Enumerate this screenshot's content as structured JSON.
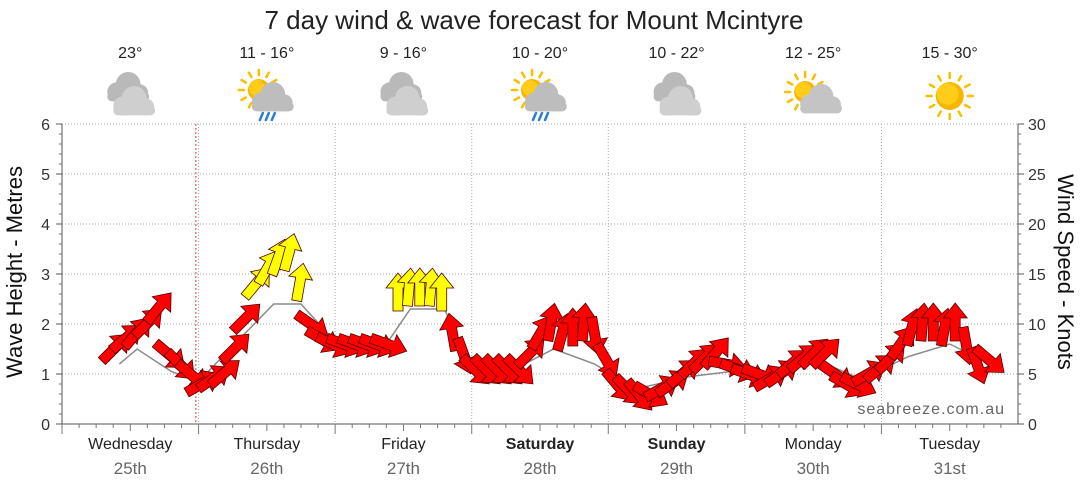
{
  "title": "7 day wind & wave forecast for Mount Mcintyre",
  "watermark": "seabreeze.com.au",
  "colors": {
    "wind_strong": "#ffff00",
    "wind_normal": "#ff0000",
    "arrow_stroke": "#550000",
    "grid": "#999999"
  },
  "days": [
    {
      "name": "Wednesday",
      "date": "25th",
      "bold": false,
      "temp": "23°",
      "icon": "cloudy-icon"
    },
    {
      "name": "Thursday",
      "date": "26th",
      "bold": false,
      "temp": "11 - 16°",
      "icon": "sun-cloud-rain-icon"
    },
    {
      "name": "Friday",
      "date": "27th",
      "bold": false,
      "temp": "9 - 16°",
      "icon": "cloudy-icon"
    },
    {
      "name": "Saturday",
      "date": "28th",
      "bold": true,
      "temp": "10 - 20°",
      "icon": "sun-cloud-rain-icon"
    },
    {
      "name": "Sunday",
      "date": "29th",
      "bold": true,
      "temp": "10 - 22°",
      "icon": "cloudy-icon"
    },
    {
      "name": "Monday",
      "date": "30th",
      "bold": false,
      "temp": "12 - 25°",
      "icon": "sun-cloud-icon"
    },
    {
      "name": "Tuesday",
      "date": "31st",
      "bold": false,
      "temp": "15 - 30°",
      "icon": "sun-icon"
    }
  ],
  "chart_data": {
    "type": "line",
    "title": "7 day wind & wave forecast for Mount Mcintyre",
    "ylabel_left": "Wave Height - Metres",
    "ylabel_right": "Wind Speed - Knots",
    "ylim_left": [
      0,
      6
    ],
    "ylim_right": [
      0,
      30
    ],
    "yticks_left": [
      0,
      1,
      2,
      3,
      4,
      5,
      6
    ],
    "yticks_right": [
      0,
      5,
      10,
      15,
      20,
      25,
      30
    ],
    "x_unit": "days from start of Wednesday 25th",
    "current_time_marker_day": 0.98,
    "grid": true,
    "series": [
      {
        "name": "Wind Speed - Knots",
        "marker": "arrow",
        "points": [
          {
            "x": 0.38,
            "speed": 7.5,
            "dir": 45
          },
          {
            "x": 0.46,
            "speed": 8.5,
            "dir": 50
          },
          {
            "x": 0.54,
            "speed": 9,
            "dir": 40
          },
          {
            "x": 0.62,
            "speed": 10,
            "dir": 45
          },
          {
            "x": 0.7,
            "speed": 11.5,
            "dir": 40
          },
          {
            "x": 0.78,
            "speed": 7,
            "dir": 130
          },
          {
            "x": 0.86,
            "speed": 6,
            "dir": 135
          },
          {
            "x": 0.94,
            "speed": 5,
            "dir": 130
          },
          {
            "x": 1.02,
            "speed": 4,
            "dir": 60
          },
          {
            "x": 1.1,
            "speed": 4.5,
            "dir": 55
          },
          {
            "x": 1.18,
            "speed": 5,
            "dir": 50
          },
          {
            "x": 1.26,
            "speed": 7.5,
            "dir": 45
          },
          {
            "x": 1.34,
            "speed": 10.5,
            "dir": 45
          },
          {
            "x": 1.42,
            "speed": 14,
            "dir": 40
          },
          {
            "x": 1.5,
            "speed": 15.5,
            "dir": 30
          },
          {
            "x": 1.58,
            "speed": 16.5,
            "dir": 20
          },
          {
            "x": 1.66,
            "speed": 17,
            "dir": 15
          },
          {
            "x": 1.74,
            "speed": 14,
            "dir": 10
          },
          {
            "x": 1.82,
            "speed": 10,
            "dir": 125
          },
          {
            "x": 1.9,
            "speed": 8.5,
            "dir": 120
          },
          {
            "x": 1.98,
            "speed": 8,
            "dir": 115
          },
          {
            "x": 2.06,
            "speed": 8,
            "dir": 110
          },
          {
            "x": 2.14,
            "speed": 8,
            "dir": 110
          },
          {
            "x": 2.22,
            "speed": 8,
            "dir": 110
          },
          {
            "x": 2.3,
            "speed": 8,
            "dir": 110
          },
          {
            "x": 2.38,
            "speed": 8,
            "dir": 110
          },
          {
            "x": 2.46,
            "speed": 13,
            "dir": 0
          },
          {
            "x": 2.54,
            "speed": 13.5,
            "dir": 5
          },
          {
            "x": 2.62,
            "speed": 13.5,
            "dir": 0
          },
          {
            "x": 2.7,
            "speed": 13.5,
            "dir": 5
          },
          {
            "x": 2.78,
            "speed": 13,
            "dir": 0
          },
          {
            "x": 2.86,
            "speed": 9,
            "dir": 350
          },
          {
            "x": 2.94,
            "speed": 7,
            "dir": 160
          },
          {
            "x": 3.02,
            "speed": 5.5,
            "dir": 135
          },
          {
            "x": 3.1,
            "speed": 5.5,
            "dir": 135
          },
          {
            "x": 3.18,
            "speed": 5.5,
            "dir": 135
          },
          {
            "x": 3.26,
            "speed": 5.5,
            "dir": 135
          },
          {
            "x": 3.34,
            "speed": 5.5,
            "dir": 135
          },
          {
            "x": 3.42,
            "speed": 7,
            "dir": 45
          },
          {
            "x": 3.5,
            "speed": 9,
            "dir": 30
          },
          {
            "x": 3.58,
            "speed": 10,
            "dir": 10
          },
          {
            "x": 3.66,
            "speed": 9,
            "dir": 15
          },
          {
            "x": 3.74,
            "speed": 9.5,
            "dir": 0
          },
          {
            "x": 3.82,
            "speed": 10,
            "dir": 5
          },
          {
            "x": 3.9,
            "speed": 9,
            "dir": 170
          },
          {
            "x": 3.98,
            "speed": 6.5,
            "dir": 150
          },
          {
            "x": 4.06,
            "speed": 4,
            "dir": 140
          },
          {
            "x": 4.14,
            "speed": 3.5,
            "dir": 135
          },
          {
            "x": 4.22,
            "speed": 3,
            "dir": 140
          },
          {
            "x": 4.3,
            "speed": 3,
            "dir": 120
          },
          {
            "x": 4.38,
            "speed": 3.5,
            "dir": 60
          },
          {
            "x": 4.46,
            "speed": 4,
            "dir": 55
          },
          {
            "x": 4.54,
            "speed": 5,
            "dir": 50
          },
          {
            "x": 4.62,
            "speed": 6,
            "dir": 45
          },
          {
            "x": 4.7,
            "speed": 6.5,
            "dir": 45
          },
          {
            "x": 4.78,
            "speed": 7,
            "dir": 40
          },
          {
            "x": 4.86,
            "speed": 6,
            "dir": 100
          },
          {
            "x": 4.94,
            "speed": 5.5,
            "dir": 110
          },
          {
            "x": 5.02,
            "speed": 5,
            "dir": 110
          },
          {
            "x": 5.1,
            "speed": 5,
            "dir": 110
          },
          {
            "x": 5.18,
            "speed": 4.5,
            "dir": 60
          },
          {
            "x": 5.26,
            "speed": 5,
            "dir": 55
          },
          {
            "x": 5.34,
            "speed": 6,
            "dir": 50
          },
          {
            "x": 5.42,
            "speed": 6.5,
            "dir": 50
          },
          {
            "x": 5.5,
            "speed": 7,
            "dir": 45
          },
          {
            "x": 5.58,
            "speed": 7,
            "dir": 45
          },
          {
            "x": 5.66,
            "speed": 5,
            "dir": 125
          },
          {
            "x": 5.74,
            "speed": 4,
            "dir": 120
          },
          {
            "x": 5.82,
            "speed": 4,
            "dir": 115
          },
          {
            "x": 5.9,
            "speed": 5,
            "dir": 60
          },
          {
            "x": 5.98,
            "speed": 5.5,
            "dir": 50
          },
          {
            "x": 6.06,
            "speed": 6.5,
            "dir": 45
          },
          {
            "x": 6.14,
            "speed": 8,
            "dir": 35
          },
          {
            "x": 6.22,
            "speed": 9.5,
            "dir": 15
          },
          {
            "x": 6.3,
            "speed": 10,
            "dir": 5
          },
          {
            "x": 6.38,
            "speed": 10,
            "dir": 0
          },
          {
            "x": 6.46,
            "speed": 9.5,
            "dir": 10
          },
          {
            "x": 6.54,
            "speed": 10,
            "dir": 0
          },
          {
            "x": 6.62,
            "speed": 8,
            "dir": 170
          },
          {
            "x": 6.7,
            "speed": 6,
            "dir": 160
          },
          {
            "x": 6.78,
            "speed": 6.5,
            "dir": 130
          }
        ]
      },
      {
        "name": "Wave Height - Metres",
        "marker": "line",
        "points": [
          {
            "x": 0.42,
            "y": 1.2
          },
          {
            "x": 0.55,
            "y": 1.5
          },
          {
            "x": 0.8,
            "y": 1.05
          },
          {
            "x": 1.0,
            "y": 0.85
          },
          {
            "x": 1.3,
            "y": 1.7
          },
          {
            "x": 1.55,
            "y": 2.4
          },
          {
            "x": 1.75,
            "y": 2.4
          },
          {
            "x": 2.0,
            "y": 1.65
          },
          {
            "x": 2.4,
            "y": 1.7
          },
          {
            "x": 2.55,
            "y": 2.3
          },
          {
            "x": 2.8,
            "y": 2.3
          },
          {
            "x": 3.0,
            "y": 1.1
          },
          {
            "x": 3.35,
            "y": 1.15
          },
          {
            "x": 3.6,
            "y": 1.5
          },
          {
            "x": 3.9,
            "y": 1.2
          },
          {
            "x": 4.2,
            "y": 0.7
          },
          {
            "x": 4.6,
            "y": 0.95
          },
          {
            "x": 4.9,
            "y": 1.05
          },
          {
            "x": 5.2,
            "y": 1.0
          },
          {
            "x": 5.55,
            "y": 1.25
          },
          {
            "x": 5.85,
            "y": 0.9
          },
          {
            "x": 6.2,
            "y": 1.35
          },
          {
            "x": 6.5,
            "y": 1.6
          },
          {
            "x": 6.8,
            "y": 1.2
          }
        ]
      }
    ]
  }
}
